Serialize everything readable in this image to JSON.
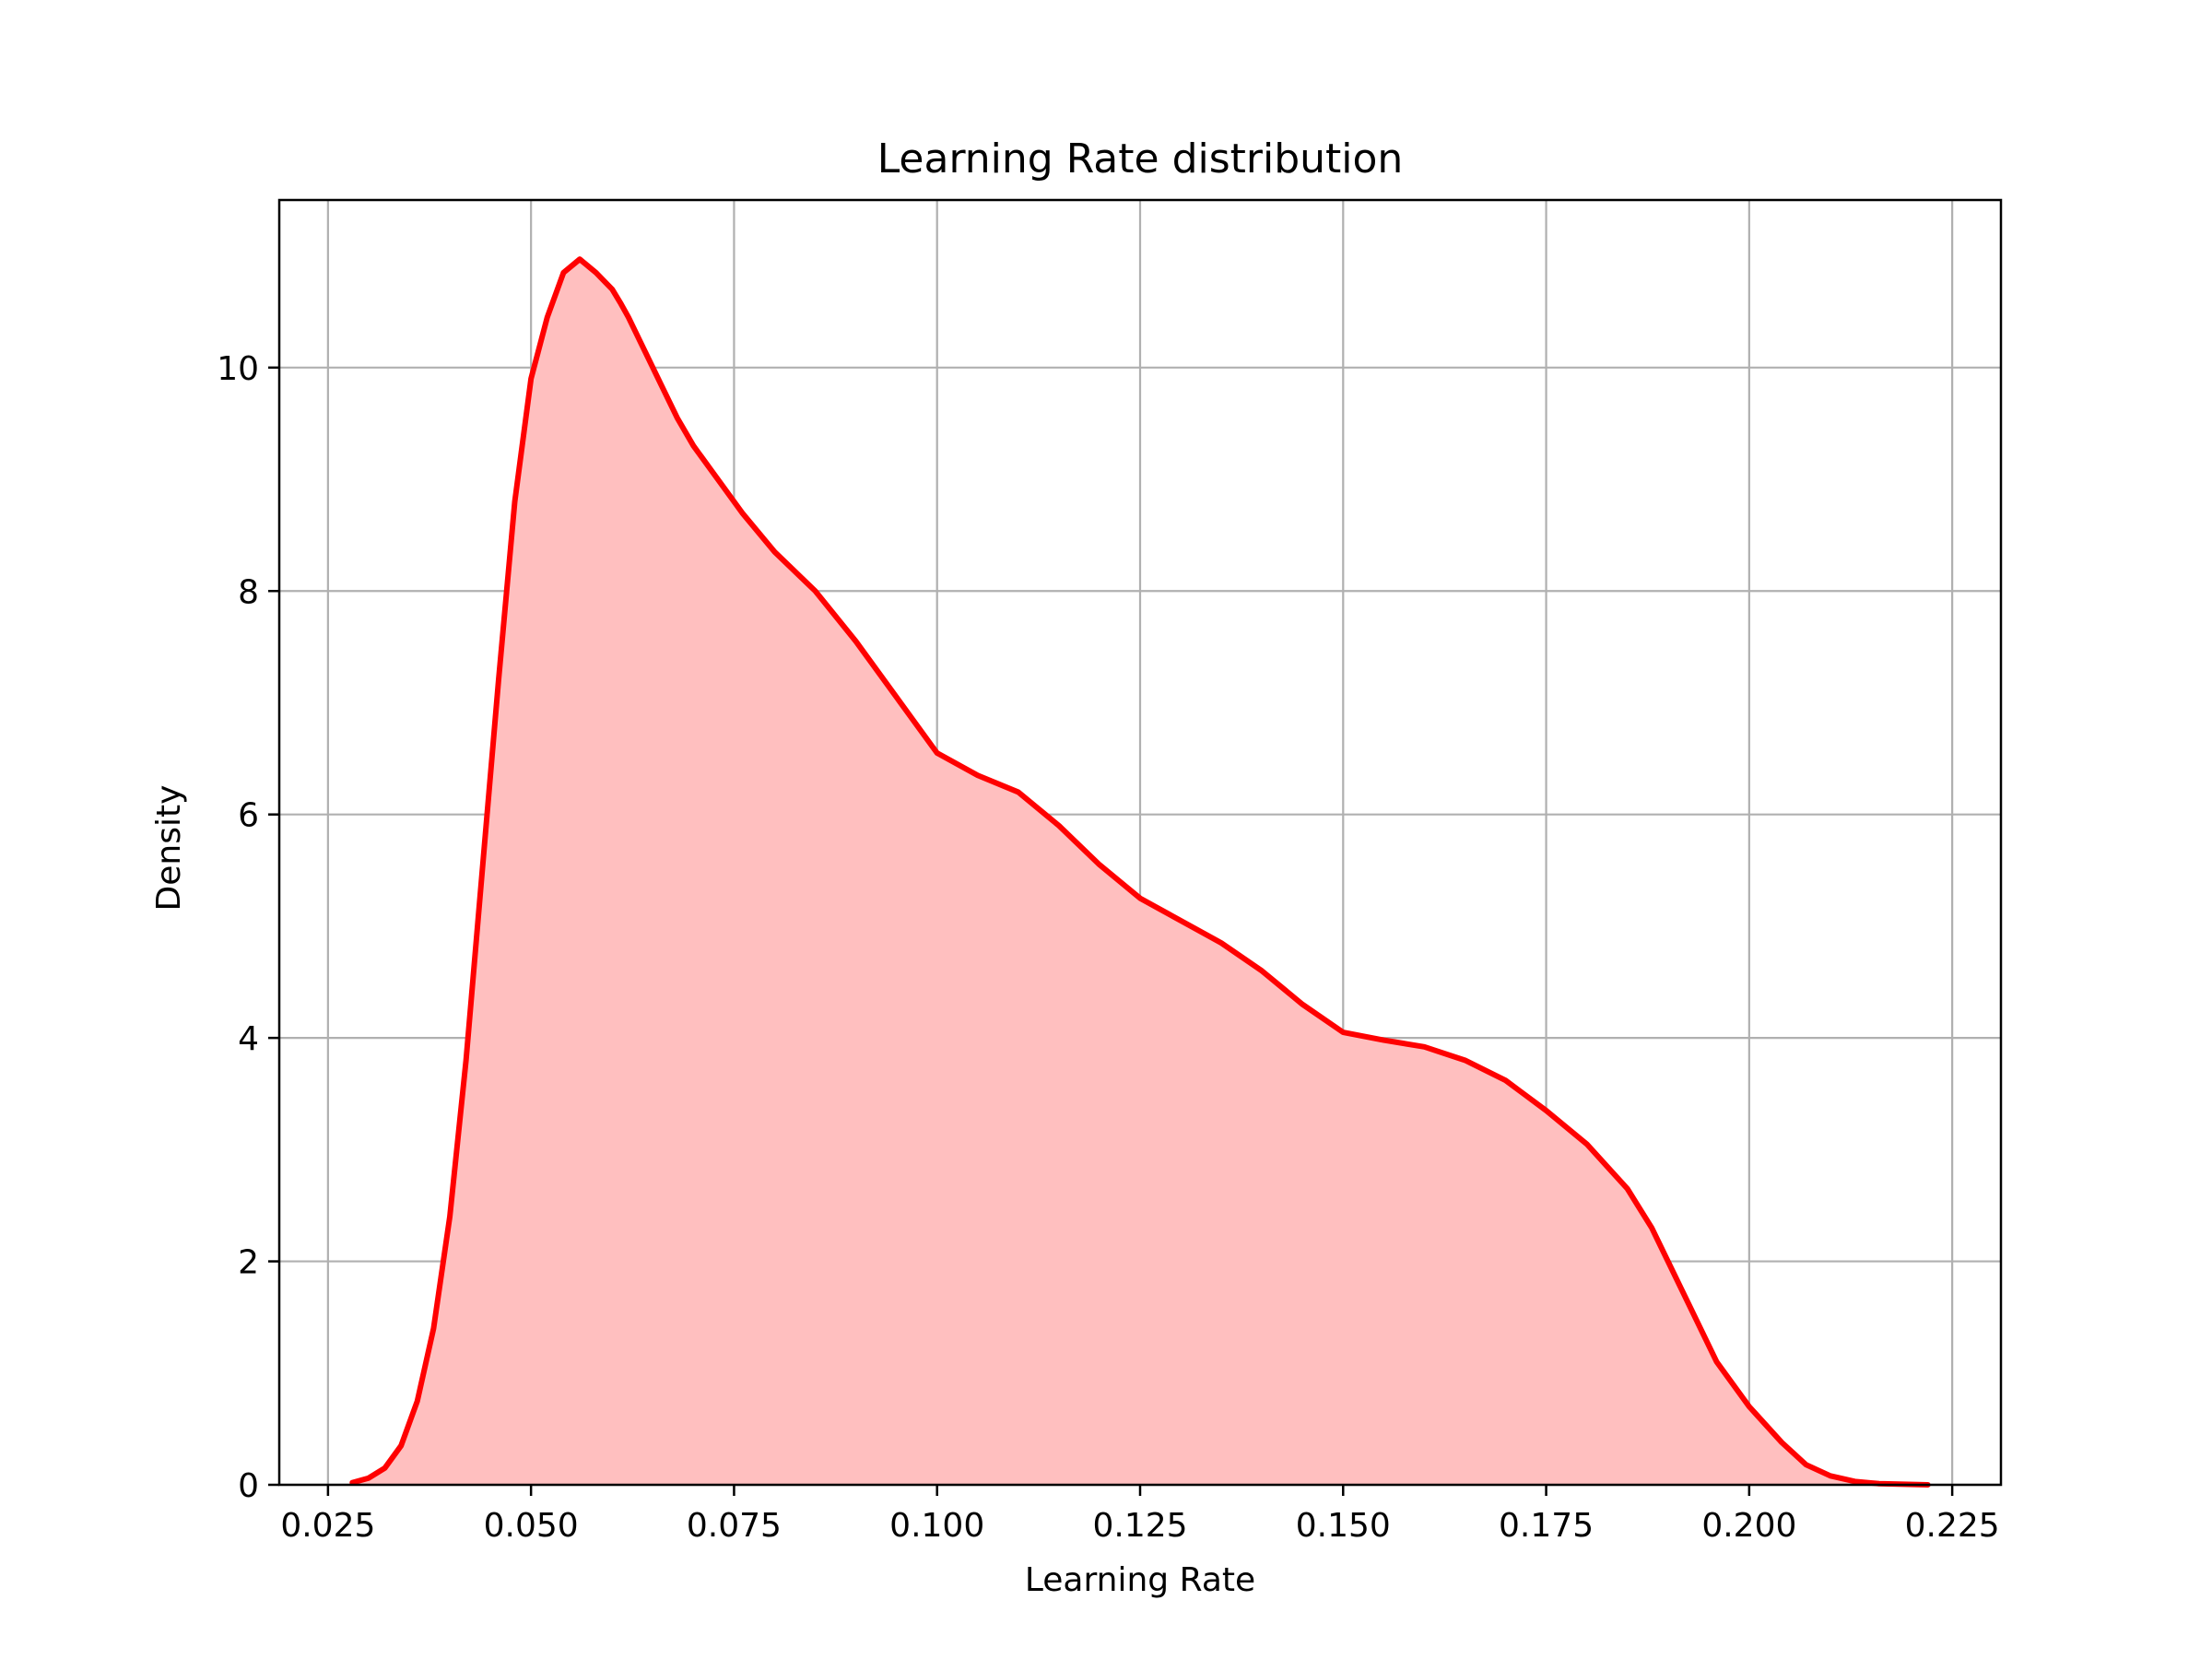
{
  "chart_data": {
    "type": "area",
    "title": "Learning Rate distribution",
    "xlabel": "Learning Rate",
    "ylabel": "Density",
    "xlim": [
      0.019,
      0.231
    ],
    "ylim": [
      0,
      11.5
    ],
    "xticks": [
      0.025,
      0.05,
      0.075,
      0.1,
      0.125,
      0.15,
      0.175,
      0.2,
      0.225
    ],
    "xtick_labels": [
      "0.025",
      "0.050",
      "0.075",
      "0.100",
      "0.125",
      "0.150",
      "0.175",
      "0.200",
      "0.225"
    ],
    "yticks": [
      0,
      2,
      4,
      6,
      8,
      10
    ],
    "ytick_labels": [
      "0",
      "2",
      "4",
      "6",
      "8",
      "10"
    ],
    "grid": true,
    "line_color": "#ff0000",
    "fill_color": "#ffbfbf",
    "series": [
      {
        "x": [
          0.028,
          0.03,
          0.032,
          0.034,
          0.036,
          0.038,
          0.04,
          0.042,
          0.044,
          0.046,
          0.048,
          0.05,
          0.052,
          0.054,
          0.056,
          0.058,
          0.06,
          0.061,
          0.062,
          0.064,
          0.066,
          0.068,
          0.07,
          0.073,
          0.076,
          0.08,
          0.085,
          0.09,
          0.095,
          0.1,
          0.105,
          0.11,
          0.115,
          0.12,
          0.125,
          0.13,
          0.135,
          0.14,
          0.145,
          0.15,
          0.155,
          0.16,
          0.165,
          0.17,
          0.175,
          0.18,
          0.185,
          0.188,
          0.19,
          0.193,
          0.196,
          0.2,
          0.204,
          0.207,
          0.21,
          0.213,
          0.216,
          0.219,
          0.222
        ],
        "y": [
          0.02,
          0.06,
          0.15,
          0.35,
          0.75,
          1.4,
          2.4,
          3.8,
          5.5,
          7.2,
          8.8,
          9.9,
          10.45,
          10.85,
          10.97,
          10.85,
          10.7,
          10.58,
          10.45,
          10.15,
          9.85,
          9.55,
          9.3,
          9.0,
          8.7,
          8.35,
          8.0,
          7.55,
          7.05,
          6.55,
          6.35,
          6.2,
          5.9,
          5.55,
          5.25,
          5.05,
          4.85,
          4.6,
          4.3,
          4.05,
          3.98,
          3.92,
          3.8,
          3.62,
          3.35,
          3.05,
          2.65,
          2.3,
          2.0,
          1.55,
          1.1,
          0.7,
          0.38,
          0.18,
          0.08,
          0.03,
          0.01,
          0.005,
          0.0
        ]
      }
    ]
  }
}
